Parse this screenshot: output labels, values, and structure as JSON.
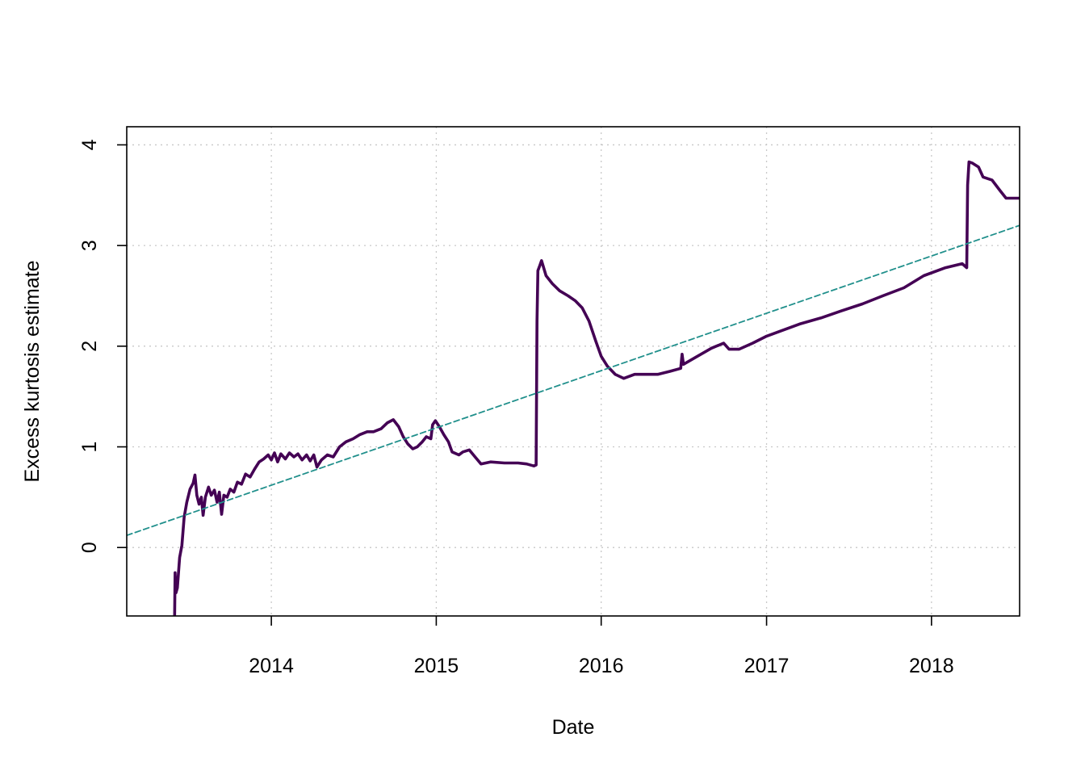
{
  "chart_data": {
    "type": "line",
    "title": "",
    "xlabel": "Date",
    "ylabel": "Excess kurtosis estimate",
    "xlim": [
      "2013-02-15",
      "2018-07-15"
    ],
    "ylim": [
      -0.68,
      4.18
    ],
    "x_ticks": [
      {
        "date": "2014-01-01",
        "label": "2014"
      },
      {
        "date": "2015-01-01",
        "label": "2015"
      },
      {
        "date": "2016-01-01",
        "label": "2016"
      },
      {
        "date": "2017-01-01",
        "label": "2017"
      },
      {
        "date": "2018-01-01",
        "label": "2018"
      }
    ],
    "y_ticks": [
      {
        "value": 0,
        "label": "0"
      },
      {
        "value": 1,
        "label": "1"
      },
      {
        "value": 2,
        "label": "2"
      },
      {
        "value": 3,
        "label": "3"
      },
      {
        "value": 4,
        "label": "4"
      }
    ],
    "grid": true,
    "legend": "none",
    "series": [
      {
        "style": "solid",
        "color": "#440154",
        "points": [
          [
            "2013-06-01",
            -0.68
          ],
          [
            "2013-06-02",
            -0.25
          ],
          [
            "2013-06-04",
            -0.45
          ],
          [
            "2013-06-07",
            -0.4
          ],
          [
            "2013-06-12",
            -0.1
          ],
          [
            "2013-06-17",
            0.02
          ],
          [
            "2013-06-22",
            0.3
          ],
          [
            "2013-06-28",
            0.45
          ],
          [
            "2013-07-05",
            0.58
          ],
          [
            "2013-07-12",
            0.64
          ],
          [
            "2013-07-16",
            0.72
          ],
          [
            "2013-07-20",
            0.52
          ],
          [
            "2013-07-25",
            0.43
          ],
          [
            "2013-07-30",
            0.5
          ],
          [
            "2013-08-03",
            0.32
          ],
          [
            "2013-08-08",
            0.5
          ],
          [
            "2013-08-15",
            0.6
          ],
          [
            "2013-08-21",
            0.52
          ],
          [
            "2013-08-28",
            0.57
          ],
          [
            "2013-09-03",
            0.45
          ],
          [
            "2013-09-08",
            0.55
          ],
          [
            "2013-09-13",
            0.33
          ],
          [
            "2013-09-18",
            0.52
          ],
          [
            "2013-09-25",
            0.5
          ],
          [
            "2013-10-02",
            0.58
          ],
          [
            "2013-10-10",
            0.55
          ],
          [
            "2013-10-18",
            0.65
          ],
          [
            "2013-10-27",
            0.63
          ],
          [
            "2013-11-05",
            0.73
          ],
          [
            "2013-11-15",
            0.7
          ],
          [
            "2013-11-25",
            0.78
          ],
          [
            "2013-12-05",
            0.85
          ],
          [
            "2013-12-15",
            0.88
          ],
          [
            "2013-12-25",
            0.92
          ],
          [
            "2014-01-01",
            0.87
          ],
          [
            "2014-01-08",
            0.94
          ],
          [
            "2014-01-15",
            0.85
          ],
          [
            "2014-01-22",
            0.93
          ],
          [
            "2014-02-01",
            0.88
          ],
          [
            "2014-02-10",
            0.94
          ],
          [
            "2014-02-20",
            0.9
          ],
          [
            "2014-03-01",
            0.93
          ],
          [
            "2014-03-10",
            0.87
          ],
          [
            "2014-03-20",
            0.92
          ],
          [
            "2014-03-28",
            0.86
          ],
          [
            "2014-04-05",
            0.92
          ],
          [
            "2014-04-12",
            0.8
          ],
          [
            "2014-04-22",
            0.87
          ],
          [
            "2014-05-05",
            0.92
          ],
          [
            "2014-05-18",
            0.9
          ],
          [
            "2014-06-01",
            1.0
          ],
          [
            "2014-06-15",
            1.05
          ],
          [
            "2014-07-01",
            1.08
          ],
          [
            "2014-07-15",
            1.12
          ],
          [
            "2014-08-01",
            1.15
          ],
          [
            "2014-08-15",
            1.15
          ],
          [
            "2014-09-01",
            1.18
          ],
          [
            "2014-09-15",
            1.24
          ],
          [
            "2014-09-28",
            1.27
          ],
          [
            "2014-10-10",
            1.2
          ],
          [
            "2014-10-20",
            1.1
          ],
          [
            "2014-10-30",
            1.03
          ],
          [
            "2014-11-10",
            0.98
          ],
          [
            "2014-11-20",
            1.0
          ],
          [
            "2014-12-01",
            1.05
          ],
          [
            "2014-12-10",
            1.1
          ],
          [
            "2014-12-20",
            1.08
          ],
          [
            "2014-12-24",
            1.22
          ],
          [
            "2014-12-30",
            1.26
          ],
          [
            "2015-01-08",
            1.2
          ],
          [
            "2015-01-18",
            1.12
          ],
          [
            "2015-01-28",
            1.05
          ],
          [
            "2015-02-05",
            0.95
          ],
          [
            "2015-02-20",
            0.92
          ],
          [
            "2015-03-01",
            0.95
          ],
          [
            "2015-03-15",
            0.97
          ],
          [
            "2015-03-28",
            0.9
          ],
          [
            "2015-04-10",
            0.83
          ],
          [
            "2015-05-01",
            0.85
          ],
          [
            "2015-06-01",
            0.84
          ],
          [
            "2015-07-01",
            0.84
          ],
          [
            "2015-07-20",
            0.83
          ],
          [
            "2015-08-05",
            0.81
          ],
          [
            "2015-08-10",
            0.82
          ],
          [
            "2015-08-12",
            2.25
          ],
          [
            "2015-08-14",
            2.75
          ],
          [
            "2015-08-18",
            2.8
          ],
          [
            "2015-08-22",
            2.85
          ],
          [
            "2015-09-01",
            2.7
          ],
          [
            "2015-09-15",
            2.62
          ],
          [
            "2015-10-01",
            2.55
          ],
          [
            "2015-10-20",
            2.5
          ],
          [
            "2015-11-05",
            2.45
          ],
          [
            "2015-11-20",
            2.38
          ],
          [
            "2015-12-05",
            2.25
          ],
          [
            "2015-12-20",
            2.05
          ],
          [
            "2016-01-01",
            1.9
          ],
          [
            "2016-01-15",
            1.8
          ],
          [
            "2016-02-01",
            1.72
          ],
          [
            "2016-02-20",
            1.68
          ],
          [
            "2016-03-15",
            1.72
          ],
          [
            "2016-04-10",
            1.72
          ],
          [
            "2016-05-05",
            1.72
          ],
          [
            "2016-06-01",
            1.75
          ],
          [
            "2016-06-25",
            1.78
          ],
          [
            "2016-06-28",
            1.92
          ],
          [
            "2016-07-01",
            1.82
          ],
          [
            "2016-08-01",
            1.9
          ],
          [
            "2016-09-01",
            1.98
          ],
          [
            "2016-09-28",
            2.03
          ],
          [
            "2016-10-10",
            1.97
          ],
          [
            "2016-11-01",
            1.97
          ],
          [
            "2016-12-01",
            2.03
          ],
          [
            "2017-01-01",
            2.1
          ],
          [
            "2017-02-01",
            2.15
          ],
          [
            "2017-03-15",
            2.22
          ],
          [
            "2017-05-01",
            2.28
          ],
          [
            "2017-06-15",
            2.35
          ],
          [
            "2017-08-01",
            2.42
          ],
          [
            "2017-09-15",
            2.5
          ],
          [
            "2017-11-01",
            2.58
          ],
          [
            "2017-12-15",
            2.7
          ],
          [
            "2018-02-01",
            2.78
          ],
          [
            "2018-03-10",
            2.82
          ],
          [
            "2018-03-20",
            2.78
          ],
          [
            "2018-03-22",
            3.6
          ],
          [
            "2018-03-25",
            3.83
          ],
          [
            "2018-04-01",
            3.82
          ],
          [
            "2018-04-15",
            3.78
          ],
          [
            "2018-04-25",
            3.68
          ],
          [
            "2018-05-15",
            3.65
          ],
          [
            "2018-06-01",
            3.55
          ],
          [
            "2018-06-15",
            3.47
          ],
          [
            "2018-07-15",
            3.47
          ]
        ]
      },
      {
        "style": "dashed",
        "color": "#21908C",
        "points": [
          [
            "2013-02-15",
            0.12
          ],
          [
            "2018-07-15",
            3.2
          ]
        ]
      }
    ]
  }
}
